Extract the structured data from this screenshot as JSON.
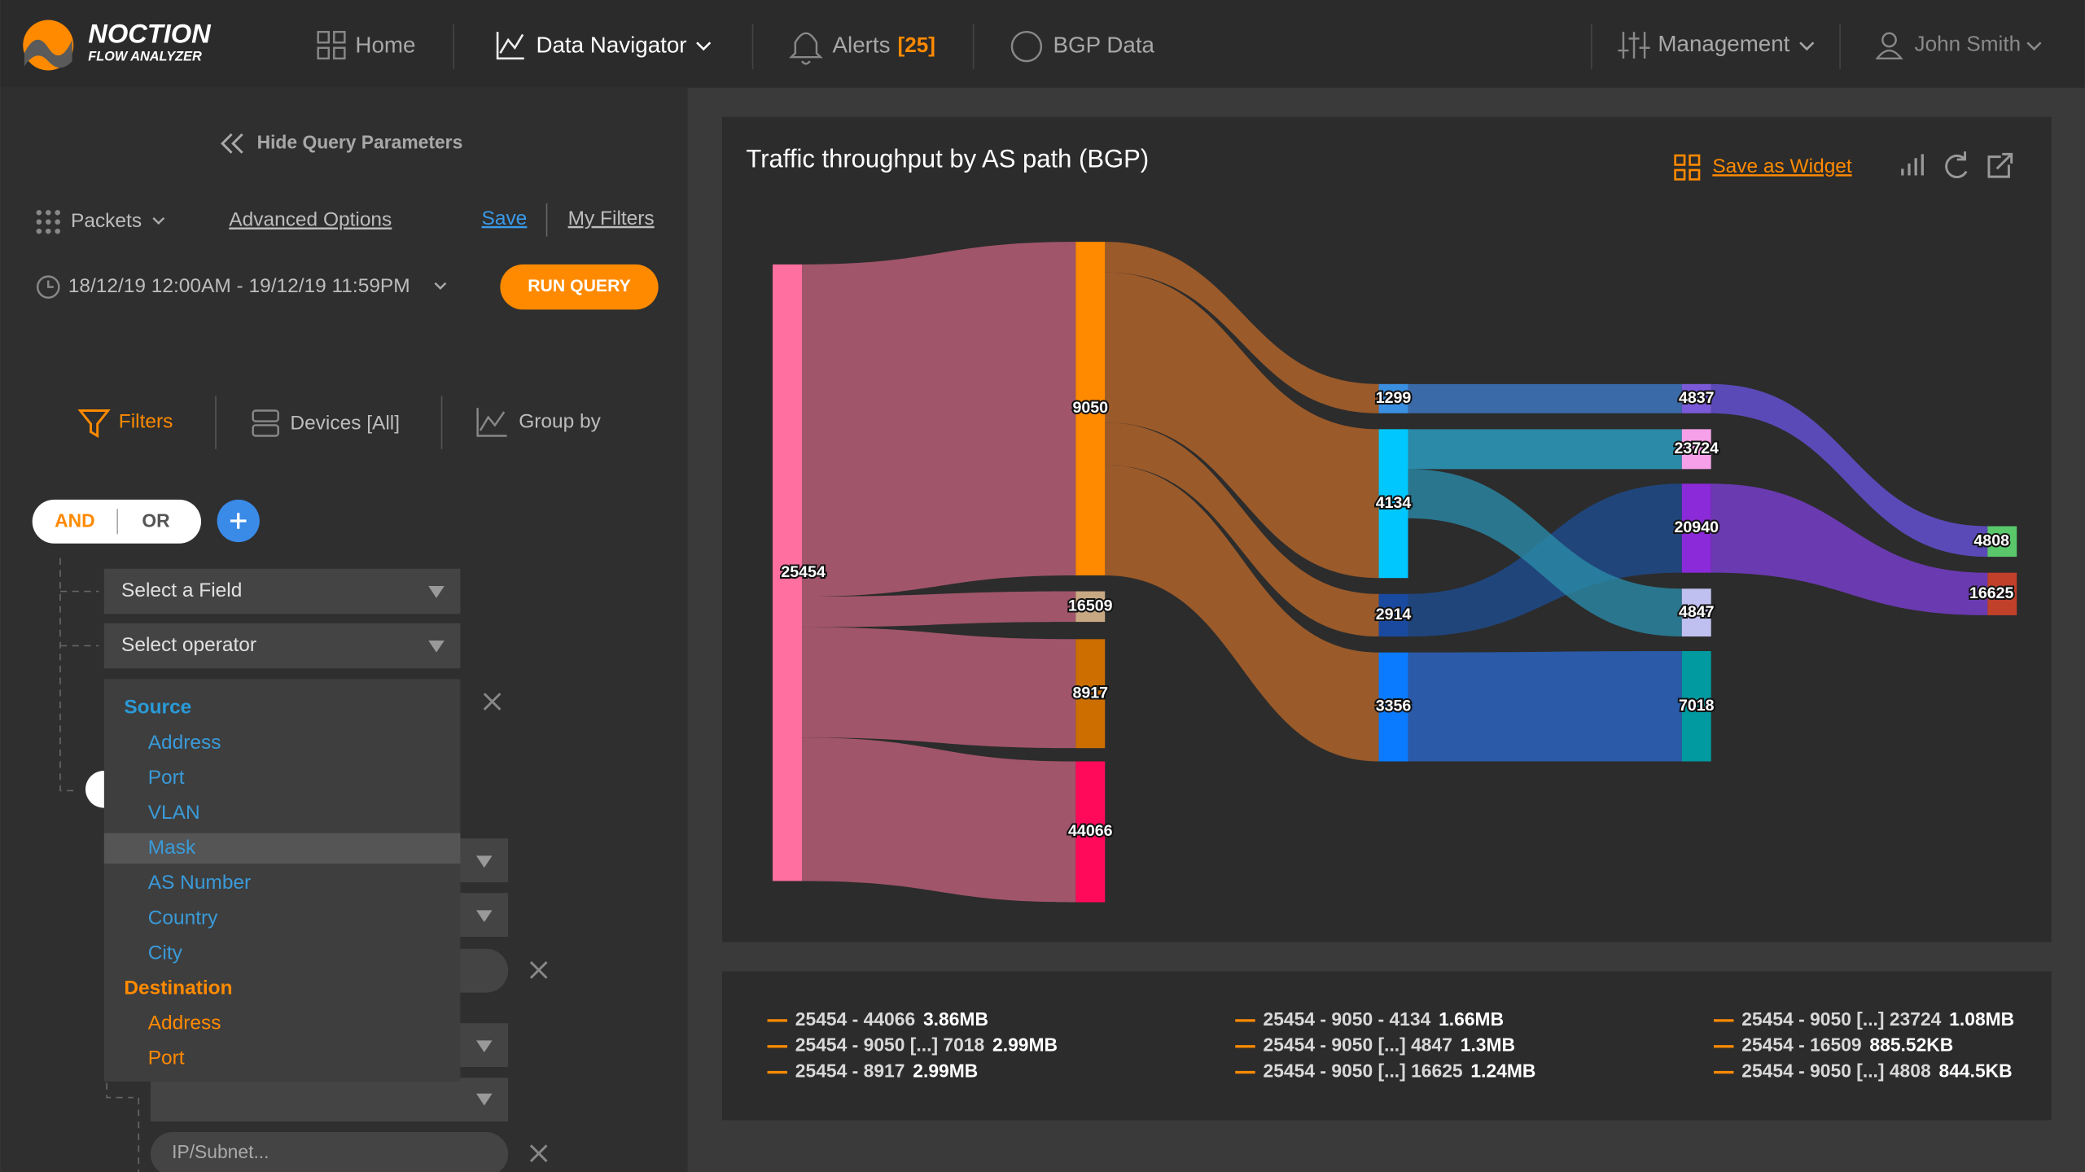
{
  "nav": {
    "brand": "NOCTION",
    "brand_sub": "FLOW ANALYZER",
    "home": "Home",
    "data_navigator": "Data Navigator",
    "alerts": "Alerts",
    "alerts_count": "[25]",
    "bgp_data": "BGP Data",
    "management": "Management",
    "user": "John Smith"
  },
  "query": {
    "hide": "Hide Query Parameters",
    "packets": "Packets",
    "advanced": "Advanced Options",
    "save": "Save",
    "my_filters": "My Filters",
    "date_range": "18/12/19 12:00AM - 19/12/19 11:59PM",
    "run": "RUN QUERY",
    "tabs": [
      "Filters",
      "Devices [All]",
      "Group by"
    ],
    "and": "AND",
    "or": "OR",
    "select_field": "Select a Field",
    "select_operator": "Select operator",
    "dropdown": [
      {
        "group": "Source",
        "items": [
          "Address",
          "Port",
          "VLAN",
          "Mask",
          "AS Number",
          "Country",
          "City"
        ]
      },
      {
        "group": "Destination",
        "items": [
          "Address",
          "Port"
        ]
      }
    ],
    "ip_placeholder": "IP/Subnet..."
  },
  "widget": {
    "title": "Traffic throughput by AS path (BGP)",
    "save_widget": "Save as Widget",
    "nodes": [
      "25454",
      "9050",
      "16509",
      "8917",
      "44066",
      "1299",
      "4134",
      "2914",
      "3356",
      "4837",
      "23724",
      "20940",
      "4847",
      "7018",
      "4808",
      "16625"
    ],
    "legend": [
      {
        "path": "25454 - 44066",
        "size": "3.86MB"
      },
      {
        "path": "25454 - 9050 [...] 7018",
        "size": "2.99MB"
      },
      {
        "path": "25454 - 8917",
        "size": "2.99MB"
      },
      {
        "path": "25454 - 9050 - 4134",
        "size": "1.66MB"
      },
      {
        "path": "25454 - 9050 [...] 4847",
        "size": "1.3MB"
      },
      {
        "path": "25454 - 9050 [...] 16625",
        "size": "1.24MB"
      },
      {
        "path": "25454 - 9050 [...] 23724",
        "size": "1.08MB"
      },
      {
        "path": "25454 - 16509",
        "size": "885.52KB"
      },
      {
        "path": "25454 - 9050 [...] 4808",
        "size": "844.5KB"
      }
    ]
  }
}
